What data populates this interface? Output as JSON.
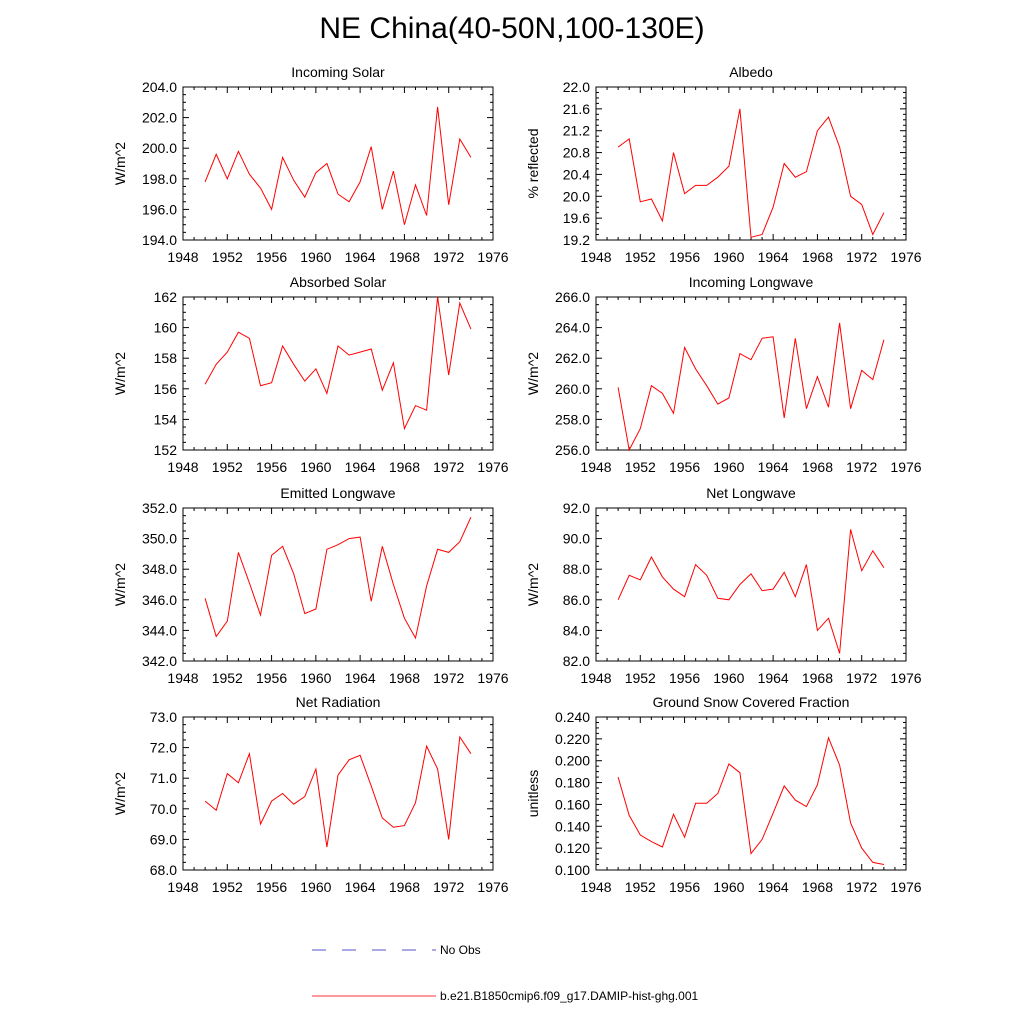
{
  "title": "NE China(40-50N,100-130E)",
  "legend": [
    {
      "label": "No Obs",
      "color": "#5555cc",
      "dash": "dashed"
    },
    {
      "label": "b.e21.B1850cmip6.f09_g17.DAMIP-hist-ghg.001",
      "color": "#ff3333",
      "dash": "solid"
    }
  ],
  "chart_data": [
    {
      "type": "line",
      "title": "Incoming Solar",
      "ylabel": "W/m^2",
      "xlim": [
        1948,
        1976
      ],
      "xticks": [
        1948,
        1952,
        1956,
        1960,
        1964,
        1968,
        1972,
        1976
      ],
      "ylim": [
        194.0,
        204.0
      ],
      "yticks": [
        "194.0",
        "196.0",
        "198.0",
        "200.0",
        "202.0",
        "204.0"
      ],
      "x": [
        1950,
        1951,
        1952,
        1953,
        1954,
        1955,
        1956,
        1957,
        1958,
        1959,
        1960,
        1961,
        1962,
        1963,
        1964,
        1965,
        1966,
        1967,
        1968,
        1969,
        1970,
        1971,
        1972,
        1973,
        1974
      ],
      "series": [
        {
          "color": "#ff0000",
          "values": [
            197.8,
            199.6,
            198.0,
            199.8,
            198.3,
            197.4,
            196.0,
            199.4,
            197.9,
            196.8,
            198.4,
            199.0,
            197.0,
            196.5,
            197.8,
            200.1,
            196.0,
            198.5,
            195.0,
            197.6,
            195.6,
            202.7,
            196.3,
            200.6,
            199.4
          ]
        }
      ]
    },
    {
      "type": "line",
      "title": "Albedo",
      "ylabel": "% reflected",
      "xlim": [
        1948,
        1976
      ],
      "xticks": [
        1948,
        1952,
        1956,
        1960,
        1964,
        1968,
        1972,
        1976
      ],
      "ylim": [
        19.2,
        22.0
      ],
      "yticks": [
        "19.2",
        "19.6",
        "20.0",
        "20.4",
        "20.8",
        "21.2",
        "21.6",
        "22.0"
      ],
      "x": [
        1950,
        1951,
        1952,
        1953,
        1954,
        1955,
        1956,
        1957,
        1958,
        1959,
        1960,
        1961,
        1962,
        1963,
        1964,
        1965,
        1966,
        1967,
        1968,
        1969,
        1970,
        1971,
        1972,
        1973,
        1974
      ],
      "series": [
        {
          "color": "#ff0000",
          "values": [
            20.9,
            21.05,
            19.9,
            19.95,
            19.55,
            20.8,
            20.05,
            20.2,
            20.2,
            20.35,
            20.55,
            21.6,
            19.25,
            19.3,
            19.8,
            20.6,
            20.35,
            20.45,
            21.2,
            21.45,
            20.9,
            20.0,
            19.85,
            19.3,
            19.7
          ]
        }
      ]
    },
    {
      "type": "line",
      "title": "Absorbed Solar",
      "ylabel": "W/m^2",
      "xlim": [
        1948,
        1976
      ],
      "xticks": [
        1948,
        1952,
        1956,
        1960,
        1964,
        1968,
        1972,
        1976
      ],
      "ylim": [
        152,
        162
      ],
      "yticks": [
        "152",
        "154",
        "156",
        "158",
        "160",
        "162"
      ],
      "x": [
        1950,
        1951,
        1952,
        1953,
        1954,
        1955,
        1956,
        1957,
        1958,
        1959,
        1960,
        1961,
        1962,
        1963,
        1964,
        1965,
        1966,
        1967,
        1968,
        1969,
        1970,
        1971,
        1972,
        1973,
        1974
      ],
      "series": [
        {
          "color": "#ff0000",
          "values": [
            156.3,
            157.6,
            158.4,
            159.7,
            159.3,
            156.2,
            156.4,
            158.8,
            157.6,
            156.5,
            157.3,
            155.7,
            158.8,
            158.2,
            158.4,
            158.6,
            155.9,
            157.7,
            153.4,
            154.9,
            154.6,
            162.0,
            156.9,
            161.6,
            159.9
          ]
        }
      ]
    },
    {
      "type": "line",
      "title": "Incoming Longwave",
      "ylabel": "W/m^2",
      "xlim": [
        1948,
        1976
      ],
      "xticks": [
        1948,
        1952,
        1956,
        1960,
        1964,
        1968,
        1972,
        1976
      ],
      "ylim": [
        256.0,
        266.0
      ],
      "yticks": [
        "256.0",
        "258.0",
        "260.0",
        "262.0",
        "264.0",
        "266.0"
      ],
      "x": [
        1950,
        1951,
        1952,
        1953,
        1954,
        1955,
        1956,
        1957,
        1958,
        1959,
        1960,
        1961,
        1962,
        1963,
        1964,
        1965,
        1966,
        1967,
        1968,
        1969,
        1970,
        1971,
        1972,
        1973,
        1974
      ],
      "series": [
        {
          "color": "#ff0000",
          "values": [
            260.1,
            256.0,
            257.4,
            260.2,
            259.7,
            258.4,
            262.7,
            261.3,
            260.2,
            259.0,
            259.4,
            262.3,
            261.9,
            263.3,
            263.4,
            258.1,
            263.3,
            258.7,
            260.8,
            258.8,
            264.3,
            258.7,
            261.2,
            260.6,
            263.2
          ]
        }
      ]
    },
    {
      "type": "line",
      "title": "Emitted Longwave",
      "ylabel": "W/m^2",
      "xlim": [
        1948,
        1976
      ],
      "xticks": [
        1948,
        1952,
        1956,
        1960,
        1964,
        1968,
        1972,
        1976
      ],
      "ylim": [
        342.0,
        352.0
      ],
      "yticks": [
        "342.0",
        "344.0",
        "346.0",
        "348.0",
        "350.0",
        "352.0"
      ],
      "x": [
        1950,
        1951,
        1952,
        1953,
        1954,
        1955,
        1956,
        1957,
        1958,
        1959,
        1960,
        1961,
        1962,
        1963,
        1964,
        1965,
        1966,
        1967,
        1968,
        1969,
        1970,
        1971,
        1972,
        1973,
        1974
      ],
      "series": [
        {
          "color": "#ff0000",
          "values": [
            346.1,
            343.6,
            344.6,
            349.1,
            347.1,
            345.0,
            348.9,
            349.5,
            347.7,
            345.1,
            345.4,
            349.3,
            349.6,
            350.0,
            350.1,
            345.9,
            349.5,
            347.0,
            344.8,
            343.5,
            346.9,
            349.3,
            349.1,
            349.8,
            351.4
          ]
        }
      ]
    },
    {
      "type": "line",
      "title": "Net Longwave",
      "ylabel": "W/m^2",
      "xlim": [
        1948,
        1976
      ],
      "xticks": [
        1948,
        1952,
        1956,
        1960,
        1964,
        1968,
        1972,
        1976
      ],
      "ylim": [
        82.0,
        92.0
      ],
      "yticks": [
        "82.0",
        "84.0",
        "86.0",
        "88.0",
        "90.0",
        "92.0"
      ],
      "x": [
        1950,
        1951,
        1952,
        1953,
        1954,
        1955,
        1956,
        1957,
        1958,
        1959,
        1960,
        1961,
        1962,
        1963,
        1964,
        1965,
        1966,
        1967,
        1968,
        1969,
        1970,
        1971,
        1972,
        1973,
        1974
      ],
      "series": [
        {
          "color": "#ff0000",
          "values": [
            86.0,
            87.6,
            87.3,
            88.8,
            87.5,
            86.7,
            86.2,
            88.3,
            87.6,
            86.1,
            86.0,
            87.0,
            87.7,
            86.6,
            86.7,
            87.8,
            86.2,
            88.3,
            84.0,
            84.8,
            82.5,
            90.6,
            87.9,
            89.2,
            88.1
          ]
        }
      ]
    },
    {
      "type": "line",
      "title": "Net Radiation",
      "ylabel": "W/m^2",
      "xlim": [
        1948,
        1976
      ],
      "xticks": [
        1948,
        1952,
        1956,
        1960,
        1964,
        1968,
        1972,
        1976
      ],
      "ylim": [
        68.0,
        73.0
      ],
      "yticks": [
        "68.0",
        "69.0",
        "70.0",
        "71.0",
        "72.0",
        "73.0"
      ],
      "x": [
        1950,
        1951,
        1952,
        1953,
        1954,
        1955,
        1956,
        1957,
        1958,
        1959,
        1960,
        1961,
        1962,
        1963,
        1964,
        1965,
        1966,
        1967,
        1968,
        1969,
        1970,
        1971,
        1972,
        1973,
        1974
      ],
      "series": [
        {
          "color": "#ff0000",
          "values": [
            70.25,
            69.95,
            71.15,
            70.85,
            71.8,
            69.5,
            70.25,
            70.5,
            70.15,
            70.4,
            71.3,
            68.75,
            71.1,
            71.6,
            71.75,
            70.75,
            69.7,
            69.4,
            69.45,
            70.2,
            72.05,
            71.3,
            69.0,
            72.35,
            71.8
          ]
        }
      ]
    },
    {
      "type": "line",
      "title": "Ground Snow Covered Fraction",
      "ylabel": "unitless",
      "xlim": [
        1948,
        1976
      ],
      "xticks": [
        1948,
        1952,
        1956,
        1960,
        1964,
        1968,
        1972,
        1976
      ],
      "ylim": [
        0.1,
        0.24
      ],
      "yticks": [
        "0.100",
        "0.120",
        "0.140",
        "0.160",
        "0.180",
        "0.200",
        "0.220",
        "0.240"
      ],
      "x": [
        1950,
        1951,
        1952,
        1953,
        1954,
        1955,
        1956,
        1957,
        1958,
        1959,
        1960,
        1961,
        1962,
        1963,
        1964,
        1965,
        1966,
        1967,
        1968,
        1969,
        1970,
        1971,
        1972,
        1973,
        1974
      ],
      "series": [
        {
          "color": "#ff0000",
          "values": [
            0.185,
            0.15,
            0.132,
            0.126,
            0.121,
            0.151,
            0.13,
            0.161,
            0.161,
            0.17,
            0.197,
            0.189,
            0.115,
            0.128,
            0.152,
            0.177,
            0.164,
            0.158,
            0.178,
            0.221,
            0.196,
            0.143,
            0.12,
            0.107,
            0.105
          ]
        }
      ]
    }
  ]
}
